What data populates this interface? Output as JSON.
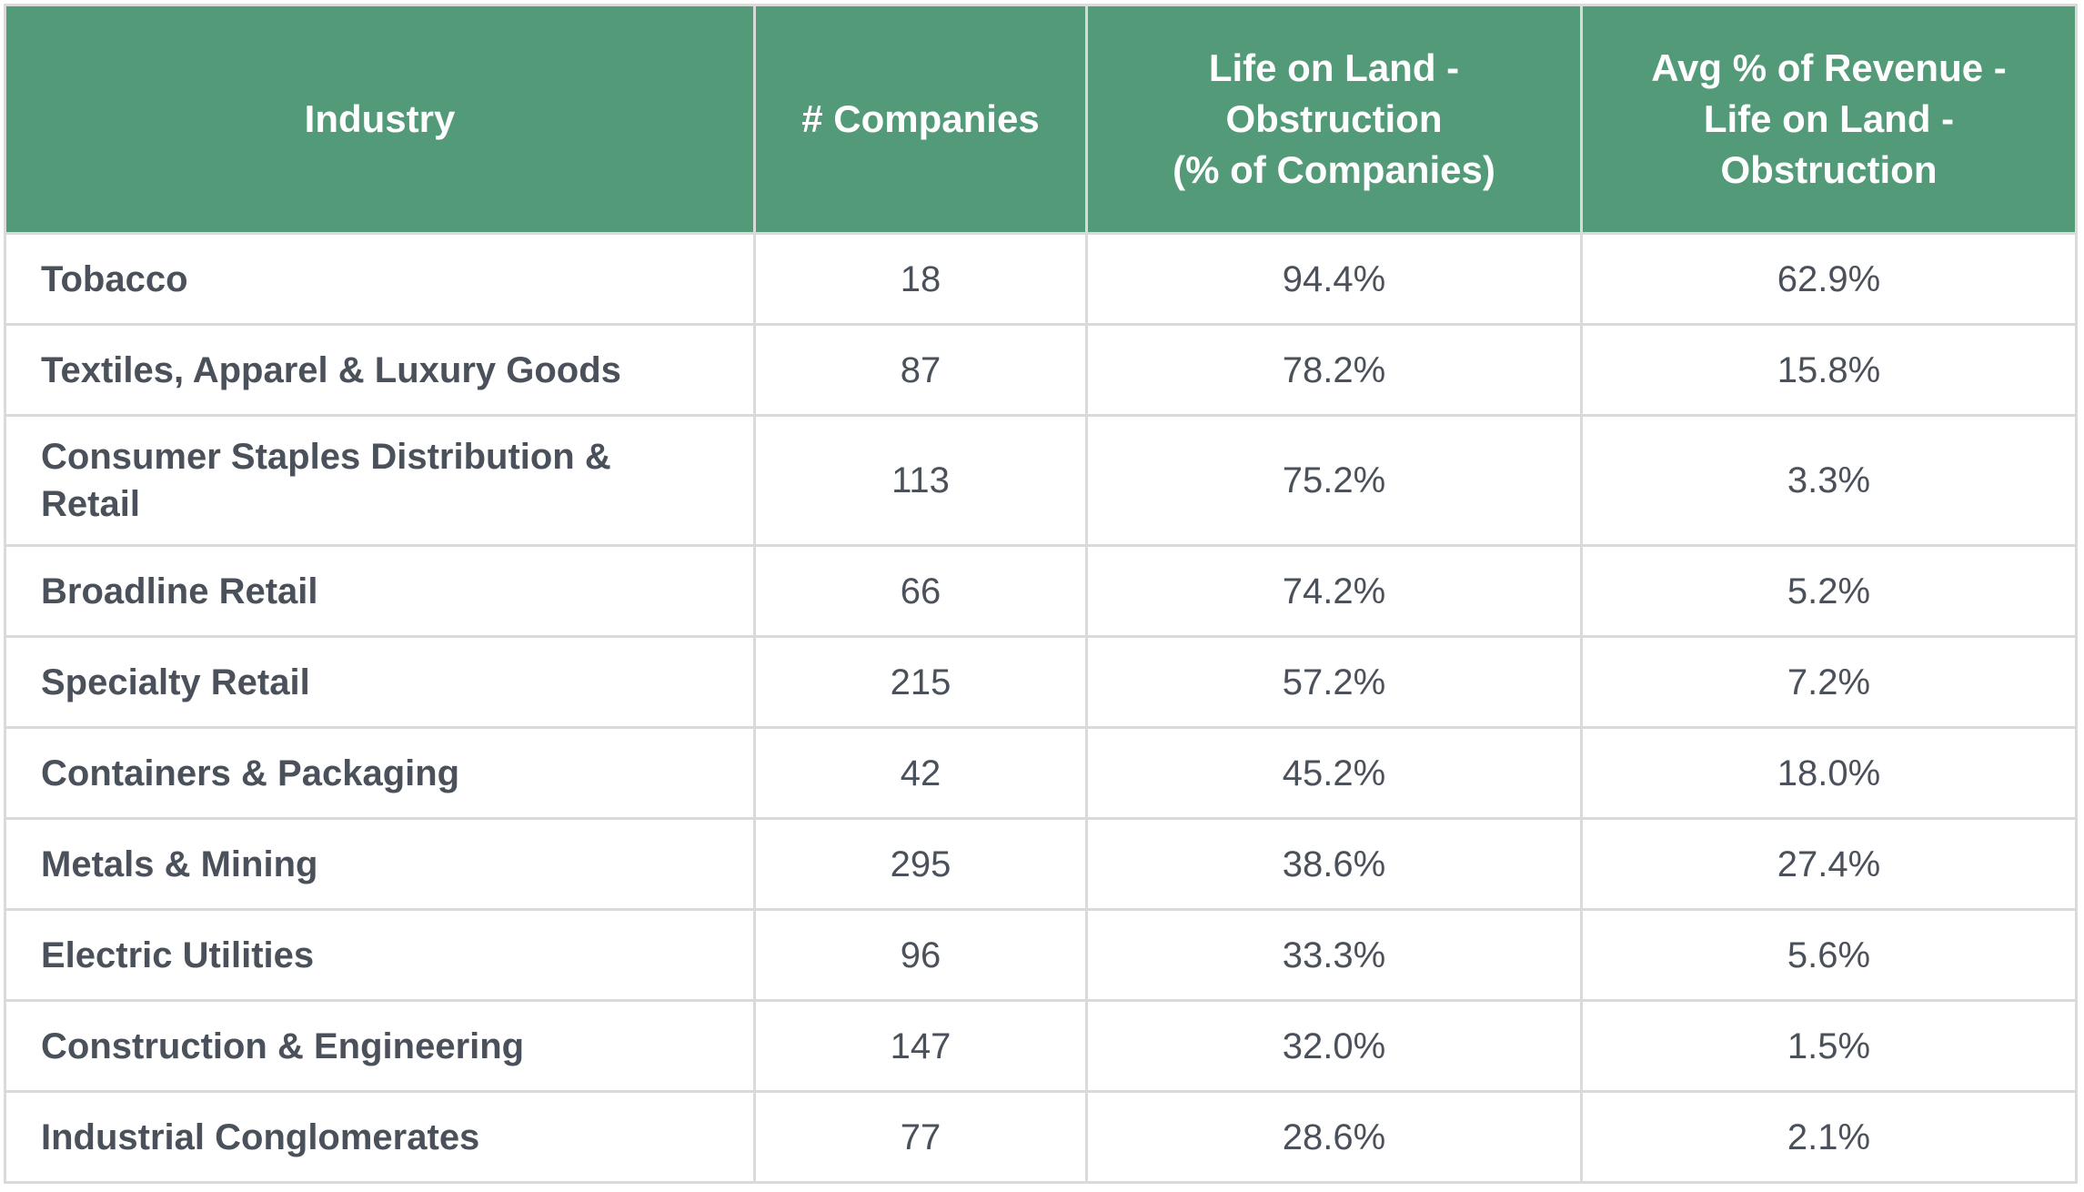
{
  "table": {
    "columns": [
      {
        "label": "Industry"
      },
      {
        "label": "# Companies"
      },
      {
        "label": "Life on Land -\nObstruction\n(% of Companies)"
      },
      {
        "label": "Avg % of Revenue -\nLife on Land -\nObstruction"
      }
    ],
    "rows": [
      {
        "industry": "Tobacco",
        "companies": "18",
        "obstruction_pct": "94.4%",
        "avg_revenue_pct": "62.9%"
      },
      {
        "industry": "Textiles, Apparel & Luxury Goods",
        "companies": "87",
        "obstruction_pct": "78.2%",
        "avg_revenue_pct": "15.8%"
      },
      {
        "industry": "Consumer Staples Distribution & Retail",
        "companies": "113",
        "obstruction_pct": "75.2%",
        "avg_revenue_pct": "3.3%"
      },
      {
        "industry": "Broadline Retail",
        "companies": "66",
        "obstruction_pct": "74.2%",
        "avg_revenue_pct": "5.2%"
      },
      {
        "industry": "Specialty Retail",
        "companies": "215",
        "obstruction_pct": "57.2%",
        "avg_revenue_pct": "7.2%"
      },
      {
        "industry": "Containers & Packaging",
        "companies": "42",
        "obstruction_pct": "45.2%",
        "avg_revenue_pct": "18.0%"
      },
      {
        "industry": "Metals & Mining",
        "companies": "295",
        "obstruction_pct": "38.6%",
        "avg_revenue_pct": "27.4%"
      },
      {
        "industry": "Electric Utilities",
        "companies": "96",
        "obstruction_pct": "33.3%",
        "avg_revenue_pct": "5.6%"
      },
      {
        "industry": "Construction & Engineering",
        "companies": "147",
        "obstruction_pct": "32.0%",
        "avg_revenue_pct": "1.5%"
      },
      {
        "industry": "Industrial Conglomerates",
        "companies": "77",
        "obstruction_pct": "28.6%",
        "avg_revenue_pct": "2.1%"
      }
    ]
  },
  "colors": {
    "header_background": "#529a78",
    "header_text": "#ffffff",
    "body_text": "#4b515a",
    "border": "#d9dbd9",
    "row_background": "#ffffff"
  }
}
